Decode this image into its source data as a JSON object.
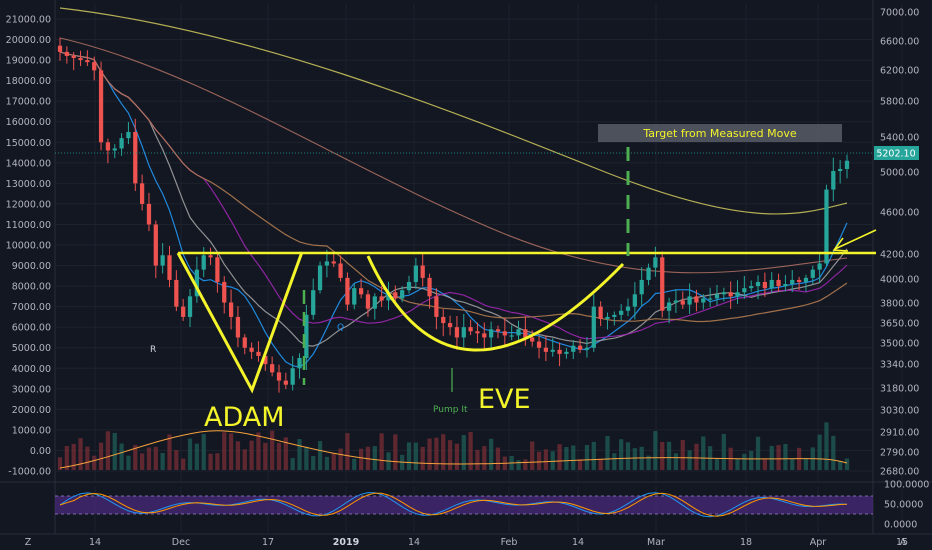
{
  "chart_data": {
    "type": "candlestick",
    "left_axis": {
      "ticks": [
        "21000.00",
        "20000.00",
        "19000.00",
        "18000.00",
        "17000.00",
        "16000.00",
        "15000.00",
        "14000.00",
        "13000.00",
        "12000.00",
        "11000.00",
        "10000.00",
        "9000.00",
        "8000.00",
        "7000.00",
        "6000.00",
        "5000.00",
        "4000.00",
        "3000.00",
        "2000.00",
        "1000.00",
        "0.00",
        "-1000.00"
      ],
      "min": -1000,
      "max": 21000
    },
    "right_axis": {
      "ticks": [
        "7000.00",
        "6600.00",
        "6200.00",
        "5800.00",
        "5400.00",
        "5000.00",
        "4600.00",
        "4200.00",
        "4000.00",
        "3800.00",
        "3650.00",
        "3500.00",
        "3340.00",
        "3180.00",
        "3030.00",
        "2910.00",
        "2790.00",
        "2680.00"
      ],
      "scale": "log",
      "current_price": "5202.10"
    },
    "x_ticks": [
      {
        "label": "14",
        "bold": false
      },
      {
        "label": "Dec",
        "bold": false
      },
      {
        "label": "17",
        "bold": false
      },
      {
        "label": "2019",
        "bold": true
      },
      {
        "label": "14",
        "bold": false
      },
      {
        "label": "Feb",
        "bold": false
      },
      {
        "label": "14",
        "bold": false
      },
      {
        "label": "Mar",
        "bold": false
      },
      {
        "label": "18",
        "bold": false
      },
      {
        "label": "Apr",
        "bold": false
      },
      {
        "label": "15",
        "bold": false
      }
    ],
    "osc_axis": {
      "ticks": [
        "100.0000",
        "50.0000",
        "0.0000"
      ],
      "min": 0,
      "max": 100
    },
    "annotations": {
      "adam": "ADAM",
      "eve": "EVE",
      "pump": "Pump It",
      "target": "Target from Measured Move",
      "marker_r": "R",
      "marker_q": "Q"
    },
    "corner_z": "Z",
    "corner_a": "A",
    "colors": {
      "up": "#26a69a",
      "down": "#ef5350",
      "pattern": "#f4f42a",
      "pump": "#4caf50"
    },
    "candles_close": [
      19400,
      19200,
      19100,
      19000,
      18900,
      18500,
      15000,
      14600,
      14700,
      15200,
      15500,
      13000,
      12000,
      11000,
      9000,
      9500,
      8300,
      7000,
      6500,
      7500,
      8800,
      9500,
      9400,
      8200,
      7200,
      6500,
      5500,
      5000,
      4800,
      4600,
      4200,
      3800,
      3400,
      3200,
      4000,
      4500,
      6600,
      7800,
      9000,
      9200,
      9100,
      8400,
      7100,
      7900,
      7600,
      6900,
      7500,
      7300,
      7700,
      7400,
      7800,
      8200,
      9000,
      8400,
      7500,
      6500,
      6200,
      6000,
      5500,
      6000,
      5800,
      5700,
      5500,
      5900,
      5800,
      5600,
      5600,
      5900,
      5500,
      5300,
      5000,
      4800,
      4900,
      4700,
      4800,
      5100,
      4900,
      5000,
      7000,
      6400,
      6500,
      6600,
      6800,
      7000,
      7600,
      8300,
      8900,
      9400,
      6800,
      7200,
      7300,
      7100,
      7500,
      7200,
      7400,
      7400,
      7600,
      7700,
      7500,
      7700,
      7900,
      8000,
      8200,
      7900,
      8300,
      8000,
      8100,
      8300,
      8200,
      8400,
      8800,
      9100,
      12700,
      13600,
      13700,
      14100
    ]
  }
}
